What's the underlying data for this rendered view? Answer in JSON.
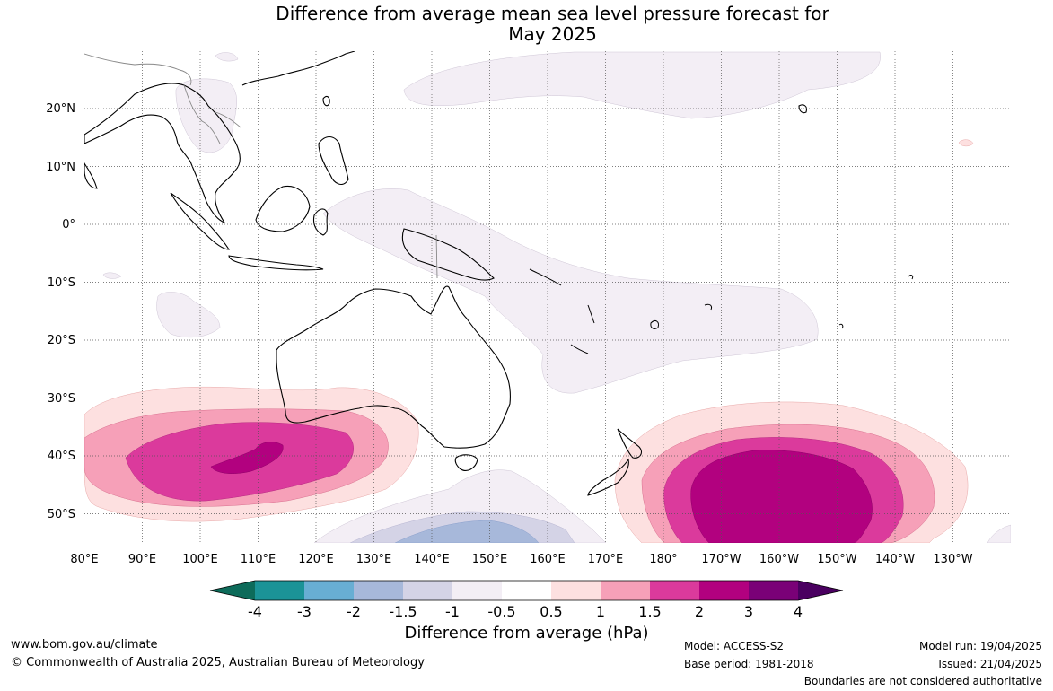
{
  "title_line1": "Difference from average mean sea level pressure forecast for",
  "title_line2": "May 2025",
  "lon_ticks": [
    "80°E",
    "90°E",
    "100°E",
    "110°E",
    "120°E",
    "130°E",
    "140°E",
    "150°E",
    "160°E",
    "170°E",
    "180°",
    "170°W",
    "160°W",
    "150°W",
    "140°W",
    "130°W"
  ],
  "lat_ticks": [
    "20°N",
    "10°N",
    "0°",
    "10°S",
    "20°S",
    "30°S",
    "40°S",
    "50°S"
  ],
  "colorbar": {
    "title": "Difference from average (hPa)",
    "tick_labels": [
      "-4",
      "-3",
      "-2",
      "-1.5",
      "-1",
      "-0.5",
      "0.5",
      "1",
      "1.5",
      "2",
      "3",
      "4"
    ],
    "colors": [
      "#0d6b5a",
      "#1b9397",
      "#68aed3",
      "#a7b8da",
      "#d4d3e6",
      "#f3eef5",
      "#ffffff",
      "#fde0e0",
      "#f6a0b8",
      "#db3a9c",
      "#b2017f",
      "#7a0177",
      "#4a0060"
    ]
  },
  "footer": {
    "website": "www.bom.gov.au/climate",
    "copyright": "© Commonwealth of Australia 2025, Australian Bureau of Meteorology",
    "model": "Model: ACCESS-S2",
    "base_period": "Base period: 1981-2018",
    "model_run": "Model run: 19/04/2025",
    "issued": "Issued: 21/04/2025",
    "disclaimer": "Boundaries are not considered authoritative"
  }
}
